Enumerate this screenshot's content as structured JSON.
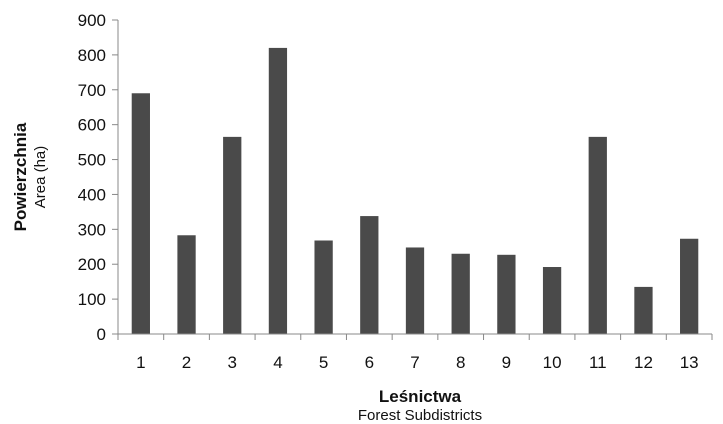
{
  "chart_data": {
    "type": "bar",
    "categories": [
      "1",
      "2",
      "3",
      "4",
      "5",
      "6",
      "7",
      "8",
      "9",
      "10",
      "11",
      "12",
      "13"
    ],
    "values": [
      690,
      283,
      565,
      820,
      268,
      338,
      248,
      230,
      227,
      192,
      565,
      135,
      273
    ],
    "ylim": [
      0,
      900
    ],
    "yticks": [
      "0",
      "100",
      "200",
      "300",
      "400",
      "500",
      "600",
      "700",
      "800",
      "900"
    ],
    "ylabel": "Powierzchnia",
    "ylabel_sub": "Area (ha)",
    "xlabel": "Leśnictwa",
    "xlabel_sub": "Forest Subdistricts",
    "bar_color": "#4a4a4a",
    "axis_color": "#888888",
    "grid": false,
    "legend": "none"
  }
}
